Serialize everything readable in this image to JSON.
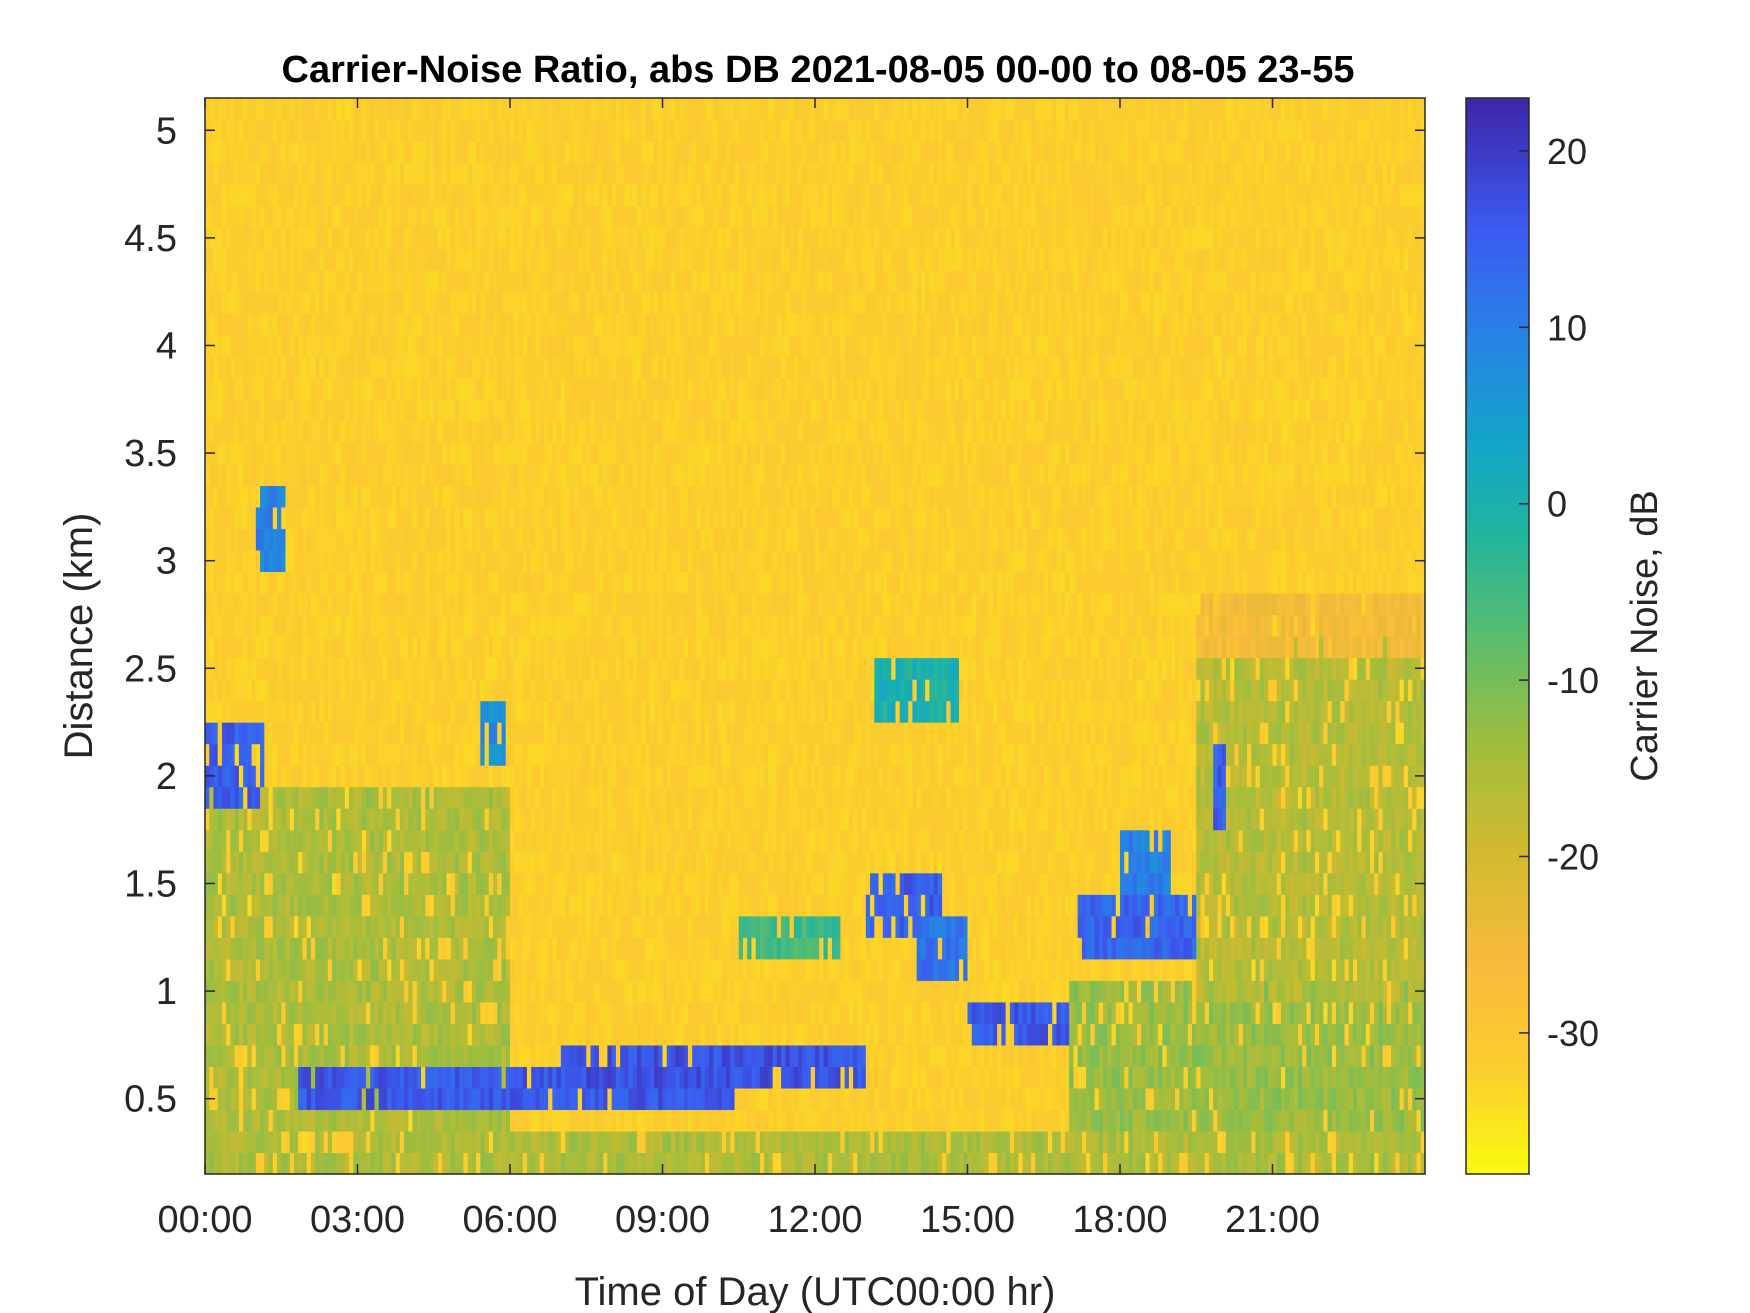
{
  "chart_data": {
    "type": "heatmap",
    "title": "Carrier-Noise Ratio, abs DB 2021-08-05 00-00 to 08-05 23-55",
    "xlabel": "Time of Day (UTC00:00 hr)",
    "ylabel": "Distance (km)",
    "colorbar_label": "Carrier Noise, dB",
    "colormap": "parula-reversed",
    "x_tick_labels": [
      "00:00",
      "03:00",
      "06:00",
      "09:00",
      "12:00",
      "15:00",
      "18:00",
      "21:00"
    ],
    "x_tick_hours": [
      0,
      3,
      6,
      9,
      12,
      15,
      18,
      21
    ],
    "xlim_hours": [
      0,
      24
    ],
    "y_ticks": [
      0.5,
      1,
      1.5,
      2,
      2.5,
      3,
      3.5,
      4,
      4.5,
      5
    ],
    "y_tick_labels": [
      "0.5",
      "1",
      "1.5",
      "2",
      "2.5",
      "3",
      "3.5",
      "4",
      "4.5",
      "5"
    ],
    "ylim": [
      0.15,
      5.15
    ],
    "clim": [
      -38,
      23
    ],
    "colorbar_ticks": [
      20,
      10,
      0,
      -10,
      -20,
      -30
    ],
    "colorbar_tick_labels": [
      "20",
      "10",
      "0",
      "-10",
      "-20",
      "-30"
    ],
    "time_step_minutes": 5,
    "range_step_km": 0.1,
    "background_value_db": -32,
    "features": [
      {
        "description": "ground clutter near surface",
        "t0": 0,
        "t1": 24,
        "h0": 0.15,
        "h1": 0.35,
        "value": -15
      },
      {
        "description": "boundary layer before 06:00",
        "t0": 0,
        "t1": 6.0,
        "h0": 0.35,
        "h1": 1.95,
        "value": -15
      },
      {
        "description": "boundary layer evening",
        "t0": 17.0,
        "t1": 24,
        "h0": 0.35,
        "h1": 1.0,
        "value": -13
      },
      {
        "description": "boundary layer growth",
        "t0": 19.5,
        "t1": 24,
        "h0": 1.0,
        "h1": 2.6,
        "value": -16
      },
      {
        "description": "residual layer top",
        "t0": 19.5,
        "t1": 24,
        "h0": 2.6,
        "h1": 2.8,
        "value": -26
      },
      {
        "description": "cloud 2.0 km",
        "t0": 0,
        "t1": 1.2,
        "h0": 1.9,
        "h1": 2.2,
        "value": 15
      },
      {
        "description": "cloud 3.0 km",
        "t0": 1.0,
        "t1": 1.6,
        "h0": 2.95,
        "h1": 3.3,
        "value": 10
      },
      {
        "description": "cloud 2.2 km",
        "t0": 5.4,
        "t1": 5.9,
        "h0": 2.05,
        "h1": 2.35,
        "value": 8
      },
      {
        "description": "low cloud band",
        "t0": 1.8,
        "t1": 10.5,
        "h0": 0.45,
        "h1": 0.7,
        "value": 16
      },
      {
        "description": "low cloud band",
        "t0": 7.0,
        "t1": 13.0,
        "h0": 0.55,
        "h1": 0.75,
        "value": 17
      },
      {
        "description": "cloud 1.3 km",
        "t0": 13.0,
        "t1": 14.5,
        "h0": 1.25,
        "h1": 1.5,
        "value": 15
      },
      {
        "description": "cloud 1.2 km",
        "t0": 14.0,
        "t1": 15.0,
        "h0": 1.05,
        "h1": 1.3,
        "value": 12
      },
      {
        "description": "cloud 0.9 km",
        "t0": 15.0,
        "t1": 17.0,
        "h0": 0.75,
        "h1": 0.95,
        "value": 16
      },
      {
        "description": "cloud 2.3 km",
        "t0": 13.2,
        "t1": 14.8,
        "h0": 2.2,
        "h1": 2.5,
        "value": 0
      },
      {
        "description": "cloud 1.4 km",
        "t0": 17.2,
        "t1": 19.5,
        "h0": 1.15,
        "h1": 1.45,
        "value": 14
      },
      {
        "description": "cloud 1.7 km",
        "t0": 18.0,
        "t1": 19.0,
        "h0": 1.5,
        "h1": 1.75,
        "value": 10
      },
      {
        "description": "cloud 2.0 km",
        "t0": 19.8,
        "t1": 20.1,
        "h0": 1.8,
        "h1": 2.1,
        "value": 15
      },
      {
        "description": "cloud 1.3 km",
        "t0": 10.5,
        "t1": 12.5,
        "h0": 1.2,
        "h1": 1.4,
        "value": -5
      }
    ],
    "grid": false,
    "legend": "colorbar-right"
  }
}
